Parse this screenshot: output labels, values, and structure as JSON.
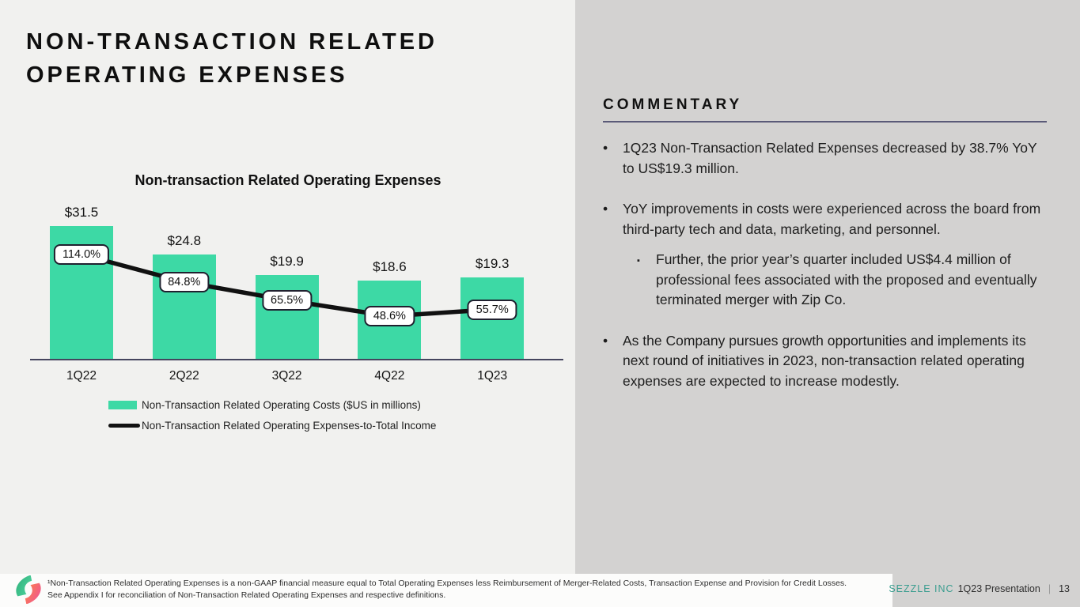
{
  "page": {
    "title_line1": "NON-TRANSACTION RELATED",
    "title_line2": "OPERATING EXPENSES"
  },
  "chart": {
    "title": "Non-transaction Related Operating Expenses",
    "legend": [
      {
        "swatch": "bar-swatch",
        "label": "Non-Transaction Related Operating Costs ($US in millions)"
      },
      {
        "swatch": "line-swatch",
        "label": "Non-Transaction Related Operating Expenses-to-Total Income"
      }
    ]
  },
  "chart_data": {
    "type": "bar",
    "title": "Non-transaction Related Operating Expenses",
    "categories": [
      "1Q22",
      "2Q22",
      "3Q22",
      "4Q22",
      "1Q23"
    ],
    "series": [
      {
        "name": "Non-Transaction Related Operating Costs ($US in millions)",
        "type": "bar",
        "values": [
          31.5,
          24.8,
          19.9,
          18.6,
          19.3
        ],
        "labels": [
          "$31.5",
          "$24.8",
          "$19.9",
          "$18.6",
          "$19.3"
        ],
        "color": "#3dd9a5"
      },
      {
        "name": "Non-Transaction Related Operating Expenses-to-Total Income",
        "type": "line",
        "values": [
          114.0,
          84.8,
          65.5,
          48.6,
          55.7
        ],
        "labels": [
          "114.0%",
          "84.8%",
          "65.5%",
          "48.6%",
          "55.7%"
        ],
        "color": "#111111"
      }
    ],
    "xlabel": "",
    "ylabel": "",
    "grid": false,
    "legend_position": "bottom"
  },
  "commentary": {
    "heading": "COMMENTARY",
    "bullets": [
      {
        "level": 1,
        "text": "1Q23 Non-Transaction Related Expenses decreased by 38.7% YoY to US$19.3 million."
      },
      {
        "level": 1,
        "text": "YoY improvements in costs were experienced across the board from third-party tech and data, marketing, and personnel."
      },
      {
        "level": 2,
        "text": "Further, the prior year’s quarter included US$4.4 million of professional fees associated with the proposed and eventually terminated merger with Zip Co."
      },
      {
        "level": 1,
        "text": "As the Company pursues growth opportunities and implements its next round of initiatives in 2023, non-transaction related operating expenses are expected to increase modestly."
      }
    ]
  },
  "footer": {
    "footnote_line1": "¹Non-Transaction Related Operating Expenses is a non-GAAP financial measure equal to Total Operating Expenses less Reimbursement of Merger-Related Costs, Transaction Expense and Provision for Credit Losses.",
    "footnote_line2": "See Appendix I for reconciliation of Non-Transaction Related Operating Expenses and respective definitions.",
    "brand": "SEZZLE INC",
    "deck": "1Q23 Presentation",
    "divider": "|",
    "page_number": "13"
  },
  "colors": {
    "bar_green": "#3dd9a5",
    "line_black": "#111111",
    "brand_teal": "#3a9d8f",
    "panel_gray": "#d3d2d1",
    "page_bg": "#f1f1ef",
    "rule_purple": "#5a5a78",
    "axis_dark": "#45455e"
  }
}
